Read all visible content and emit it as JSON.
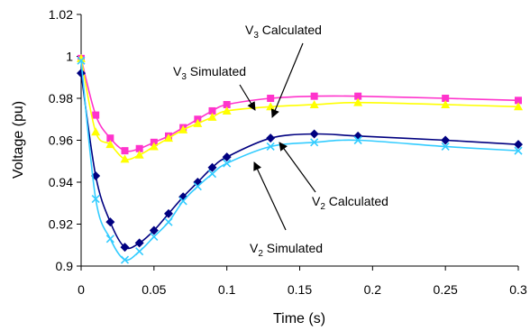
{
  "chart_data": {
    "type": "line",
    "title": "",
    "xlabel": "Time (s)",
    "ylabel": "Voltage (pu)",
    "xlim": [
      0,
      0.3
    ],
    "ylim": [
      0.9,
      1.02
    ],
    "x_ticks": [
      "0",
      "0.05",
      "0.1",
      "0.15",
      "0.2",
      "0.25",
      "0.3"
    ],
    "y_ticks": [
      "0.9",
      "0.92",
      "0.94",
      "0.96",
      "0.98",
      "1",
      "1.02"
    ],
    "grid": false,
    "legend": "none",
    "series": [
      {
        "name": "V3 Calculated",
        "color": "#ff33cc",
        "marker": "square",
        "x": [
          0,
          0.01,
          0.02,
          0.03,
          0.04,
          0.05,
          0.06,
          0.07,
          0.08,
          0.09,
          0.1,
          0.13,
          0.16,
          0.19,
          0.25,
          0.3
        ],
        "y": [
          0.999,
          0.972,
          0.961,
          0.955,
          0.956,
          0.959,
          0.962,
          0.966,
          0.97,
          0.974,
          0.977,
          0.98,
          0.981,
          0.981,
          0.98,
          0.979
        ]
      },
      {
        "name": "V3 Simulated",
        "color": "#ffff00",
        "marker": "triangle",
        "x": [
          0,
          0.01,
          0.02,
          0.03,
          0.04,
          0.05,
          0.06,
          0.07,
          0.08,
          0.09,
          0.1,
          0.13,
          0.16,
          0.19,
          0.25,
          0.3
        ],
        "y": [
          0.999,
          0.964,
          0.958,
          0.951,
          0.953,
          0.957,
          0.961,
          0.965,
          0.968,
          0.971,
          0.974,
          0.976,
          0.977,
          0.978,
          0.977,
          0.976
        ]
      },
      {
        "name": "V2 Calculated",
        "color": "#000080",
        "marker": "diamond",
        "x": [
          0,
          0.01,
          0.02,
          0.03,
          0.04,
          0.05,
          0.06,
          0.07,
          0.08,
          0.09,
          0.1,
          0.13,
          0.16,
          0.19,
          0.25,
          0.3
        ],
        "y": [
          0.992,
          0.943,
          0.921,
          0.909,
          0.911,
          0.917,
          0.925,
          0.933,
          0.94,
          0.947,
          0.952,
          0.961,
          0.963,
          0.962,
          0.96,
          0.958
        ]
      },
      {
        "name": "V2 Simulated",
        "color": "#33ccff",
        "marker": "x",
        "x": [
          0,
          0.01,
          0.02,
          0.03,
          0.04,
          0.05,
          0.06,
          0.07,
          0.08,
          0.09,
          0.1,
          0.13,
          0.16,
          0.19,
          0.25,
          0.3
        ],
        "y": [
          0.998,
          0.932,
          0.913,
          0.903,
          0.907,
          0.914,
          0.921,
          0.931,
          0.938,
          0.944,
          0.949,
          0.957,
          0.959,
          0.96,
          0.957,
          0.955
        ]
      }
    ],
    "annotations": [
      {
        "main": "V",
        "sub": "3",
        "rest": " Calculated"
      },
      {
        "main": "V",
        "sub": "3",
        "rest": " Simulated"
      },
      {
        "main": "V",
        "sub": "2",
        "rest": " Calculated"
      },
      {
        "main": "V",
        "sub": "2",
        "rest": " Simulated"
      }
    ]
  }
}
